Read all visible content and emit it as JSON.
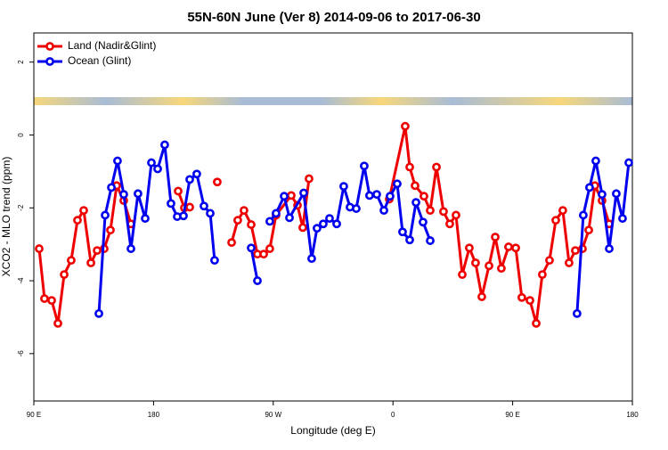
{
  "chart_data": {
    "type": "line",
    "title": "55N-60N June (Ver 8)   2014-09-06 to 2017-06-30",
    "x_label": "Longitude (deg E)",
    "y_label": "XCO2 - MLO trend (ppm)",
    "xlim": [
      90,
      540
    ],
    "ylim": [
      -7.3,
      2.8
    ],
    "xticks": [
      {
        "value": 90,
        "label": "90 E"
      },
      180,
      {
        "value": 270,
        "label": "90 W"
      },
      {
        "value": 360,
        "label": "0"
      },
      {
        "value": 450,
        "label": "90 E"
      },
      {
        "value": 540,
        "label": "180"
      }
    ],
    "yticks": [
      -6,
      -4,
      -2,
      0,
      2
    ],
    "legend": "top-left",
    "series": [
      {
        "name": "Land (Nadir&Glint)",
        "color": "#ee0000",
        "x": [
          94.0,
          98.0,
          103.4,
          108.1,
          112.8,
          118.1,
          122.8,
          127.5,
          132.9,
          137.6,
          142.9,
          147.6,
          152.3,
          157.6,
          163.0,
          170,
          198.5,
          203.2,
          207.2,
          220,
          227.9,
          235,
          238.7,
          243.3,
          248.0,
          253.4,
          258.1,
          262.8,
          267.4,
          272.1,
          283.5,
          288.2,
          292.2,
          296.9,
          330,
          357.2,
          369.2,
          372.6,
          376.6,
          383.3,
          388.0,
          392.7,
          398.0,
          402.7,
          407.4,
          412.1,
          417.4,
          422.1,
          426.8,
          432.2,
          436.9,
          441.5,
          446.9,
          452.3,
          456.9,
          463.0,
          467.7,
          472.3,
          477.7,
          482.4,
          487.7,
          492.4,
          497.1,
          502.5,
          507.2,
          511.8,
          517.2,
          522.6
        ],
        "values": [
          -3.12,
          -4.49,
          -4.54,
          -5.17,
          -3.83,
          -3.44,
          -2.34,
          -2.07,
          -3.51,
          -3.17,
          -3.12,
          -2.61,
          -1.39,
          -1.8,
          -2.44,
          null,
          -1.54,
          -2.0,
          -1.98,
          null,
          -1.29,
          null,
          -2.95,
          -2.34,
          -2.07,
          -2.46,
          -3.27,
          -3.27,
          -3.12,
          -2.2,
          -1.66,
          -1.93,
          -2.54,
          -1.2,
          null,
          -1.76,
          0.24,
          -0.88,
          -1.39,
          -1.68,
          -2.07,
          -0.88,
          -2.1,
          -2.44,
          -2.2,
          -3.83,
          -3.1,
          -3.51,
          -4.44,
          -3.59,
          -2.8,
          -3.66,
          -3.07,
          -3.1,
          -4.46,
          -4.54,
          -5.17,
          -3.83,
          -3.44,
          -2.34,
          -2.07,
          -3.51,
          -3.17,
          -3.12,
          -2.61,
          -1.39,
          -1.8,
          -2.44
        ]
      },
      {
        "name": "Ocean (Glint)",
        "color": "#0000ee",
        "x": [
          138.9,
          143.6,
          148.3,
          152.9,
          157.6,
          163.0,
          168.3,
          173.7,
          178.4,
          183.1,
          188.4,
          193.1,
          197.8,
          202.5,
          207.2,
          212.5,
          217.9,
          222.6,
          225.9,
          240,
          253.4,
          258.1,
          265,
          267.4,
          272.1,
          278.2,
          282.2,
          292.9,
          298.9,
          302.9,
          307.6,
          312.3,
          317.7,
          323.0,
          327.7,
          332.4,
          338.4,
          342.4,
          347.8,
          353.2,
          357.8,
          363.2,
          367.2,
          372.6,
          377.3,
          382.6,
          388.0,
          450,
          498.4,
          503.1,
          507.8,
          512.5,
          517.2,
          522.6,
          527.9,
          532.6,
          537.3
        ],
        "values": [
          -4.9,
          -2.2,
          -1.44,
          -0.71,
          -1.63,
          -3.12,
          -1.61,
          -2.29,
          -0.76,
          -0.93,
          -0.27,
          -1.88,
          -2.24,
          -2.22,
          -1.22,
          -1.07,
          -1.95,
          -2.15,
          -3.44,
          null,
          -3.1,
          -4.0,
          null,
          -2.37,
          -2.15,
          -1.68,
          -2.27,
          -1.59,
          -3.39,
          -2.56,
          -2.44,
          -2.29,
          -2.44,
          -1.41,
          -1.98,
          -2.02,
          -0.85,
          -1.66,
          -1.63,
          -2.07,
          -1.68,
          -1.34,
          -2.66,
          -2.88,
          -1.85,
          -2.39,
          -2.9,
          null,
          -4.9,
          -2.2,
          -1.44,
          -0.71,
          -1.63,
          -3.12,
          -1.61,
          -2.29,
          -0.76
        ]
      }
    ]
  }
}
